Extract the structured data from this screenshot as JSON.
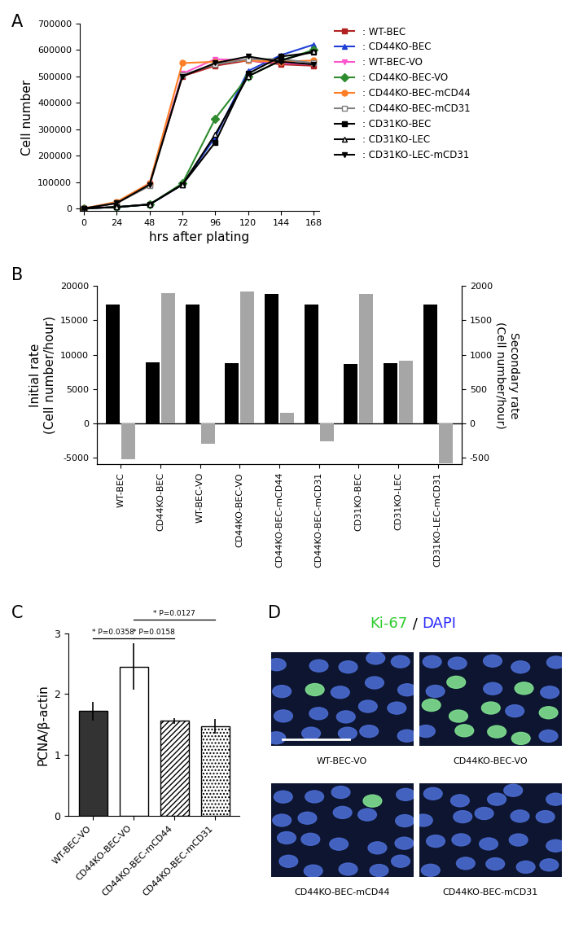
{
  "chart_data": [
    {
      "type": "line",
      "panel": "A",
      "xlabel": "hrs after plating",
      "ylabel": "Cell number",
      "x": [
        0,
        24,
        48,
        72,
        96,
        120,
        144,
        168
      ],
      "xlim": [
        -3,
        172
      ],
      "xticks": [
        0,
        24,
        48,
        72,
        96,
        120,
        144,
        168
      ],
      "ylim": [
        -10000,
        700000
      ],
      "yticks": [
        0,
        100000,
        200000,
        300000,
        400000,
        500000,
        600000,
        700000
      ],
      "legend": "upper left",
      "series": [
        {
          "name": ": WT-BEC",
          "color": "#b22222",
          "marker": "square",
          "values": [
            0,
            20000,
            90000,
            500000,
            540000,
            560000,
            545000,
            540000
          ]
        },
        {
          "name": ": CD44KO-BEC",
          "color": "#1f3fd6",
          "marker": "triangle_up",
          "values": [
            0,
            5000,
            15000,
            90000,
            270000,
            520000,
            580000,
            620000
          ]
        },
        {
          "name": ": WT-BEC-VO",
          "color": "#ff55cc",
          "marker": "triangle_down",
          "values": [
            0,
            20000,
            95000,
            510000,
            565000,
            560000,
            550000,
            545000
          ]
        },
        {
          "name": ": CD44KO-BEC-VO",
          "color": "#2e8b2e",
          "marker": "diamond",
          "values": [
            0,
            5000,
            15000,
            95000,
            340000,
            500000,
            560000,
            600000
          ]
        },
        {
          "name": ": CD44KO-BEC-mCD44",
          "color": "#ff7f27",
          "marker": "circle",
          "values": [
            0,
            25000,
            95000,
            550000,
            555000,
            560000,
            555000,
            560000
          ]
        },
        {
          "name": ": CD44KO-BEC-mCD31",
          "color": "#808080",
          "marker": "square_open",
          "values": [
            0,
            20000,
            85000,
            505000,
            545000,
            565000,
            565000,
            550000
          ]
        },
        {
          "name": ": CD31KO-BEC",
          "color": "#000000",
          "marker": "square",
          "values": [
            0,
            5000,
            15000,
            90000,
            250000,
            510000,
            575000,
            590000
          ]
        },
        {
          "name": ": CD31KO-LEC",
          "color": "#000000",
          "marker": "triangle_up_open",
          "values": [
            0,
            5000,
            15000,
            90000,
            280000,
            500000,
            560000,
            595000
          ]
        },
        {
          "name": ": CD31KO-LEC-mCD31",
          "color": "#000000",
          "marker": "triangle_down",
          "values": [
            0,
            20000,
            90000,
            500000,
            550000,
            575000,
            555000,
            545000
          ]
        }
      ]
    },
    {
      "type": "bar",
      "panel": "B",
      "categories": [
        "WT-BEC",
        "CD44KO-BEC",
        "WT-BEC-VO",
        "CD44KO-BEC-VO",
        "CD44KO-BEC-mCD44",
        "CD44KO-BEC-mCD31",
        "CD31KO-BEC",
        "CD31KO-LEC",
        "CD31KO-LEC-mCD31"
      ],
      "ylabel": "Initial rate\n(Cell number/hour)",
      "y2label": "Secondary rate\n(Cell number/hour)",
      "ylim": [
        -6000,
        20000
      ],
      "yticks": [
        -5000,
        0,
        5000,
        10000,
        15000,
        20000
      ],
      "y2lim": [
        -600,
        2000
      ],
      "y2ticks": [
        -500,
        0,
        500,
        1000,
        1500,
        2000
      ],
      "series": [
        {
          "name": "Initial rate",
          "color": "#000000",
          "values": [
            17300,
            8900,
            17300,
            8800,
            18800,
            17300,
            8600,
            8800,
            17300
          ]
        },
        {
          "name": "Secondary rate",
          "color": "#a6a6a6",
          "axis": "y2",
          "values": [
            -520,
            1900,
            -300,
            1920,
            150,
            -260,
            1890,
            910,
            -590
          ]
        }
      ]
    },
    {
      "type": "bar",
      "panel": "C",
      "ylabel": "PCNA/β-actin",
      "categories": [
        "WT-BEC-VO",
        "CD44KO-BEC-VO",
        "CD44KO-BEC-mCD44",
        "CD44KO-BEC-mCD31"
      ],
      "values": [
        1.72,
        2.45,
        1.56,
        1.47
      ],
      "errors": [
        0.15,
        0.38,
        0.05,
        0.12
      ],
      "colors": [
        "#333333",
        "#ffffff",
        "#ffffff",
        "#ffffff"
      ],
      "ylim": [
        0,
        3
      ],
      "yticks": [
        0,
        1,
        2,
        3
      ],
      "comparisons": [
        {
          "from": 0,
          "to": 1,
          "y": 2.92,
          "label": "* P=0.0358"
        },
        {
          "from": 1,
          "to": 2,
          "y": 2.92,
          "label": "* P=0.0158"
        },
        {
          "from": 1,
          "to": 3,
          "y": 3.22,
          "label": "* P=0.0127"
        }
      ]
    },
    {
      "type": "image",
      "panel": "D",
      "title_parts": [
        {
          "text": "Ki-67",
          "color": "#2ecc2e"
        },
        {
          "text": " / ",
          "color": "#000000"
        },
        {
          "text": "DAPI",
          "color": "#2a2aff"
        }
      ],
      "labels": [
        "WT-BEC-VO",
        "CD44KO-BEC-VO",
        "CD44KO-BEC-mCD44",
        "CD44KO-BEC-mCD31"
      ]
    }
  ]
}
